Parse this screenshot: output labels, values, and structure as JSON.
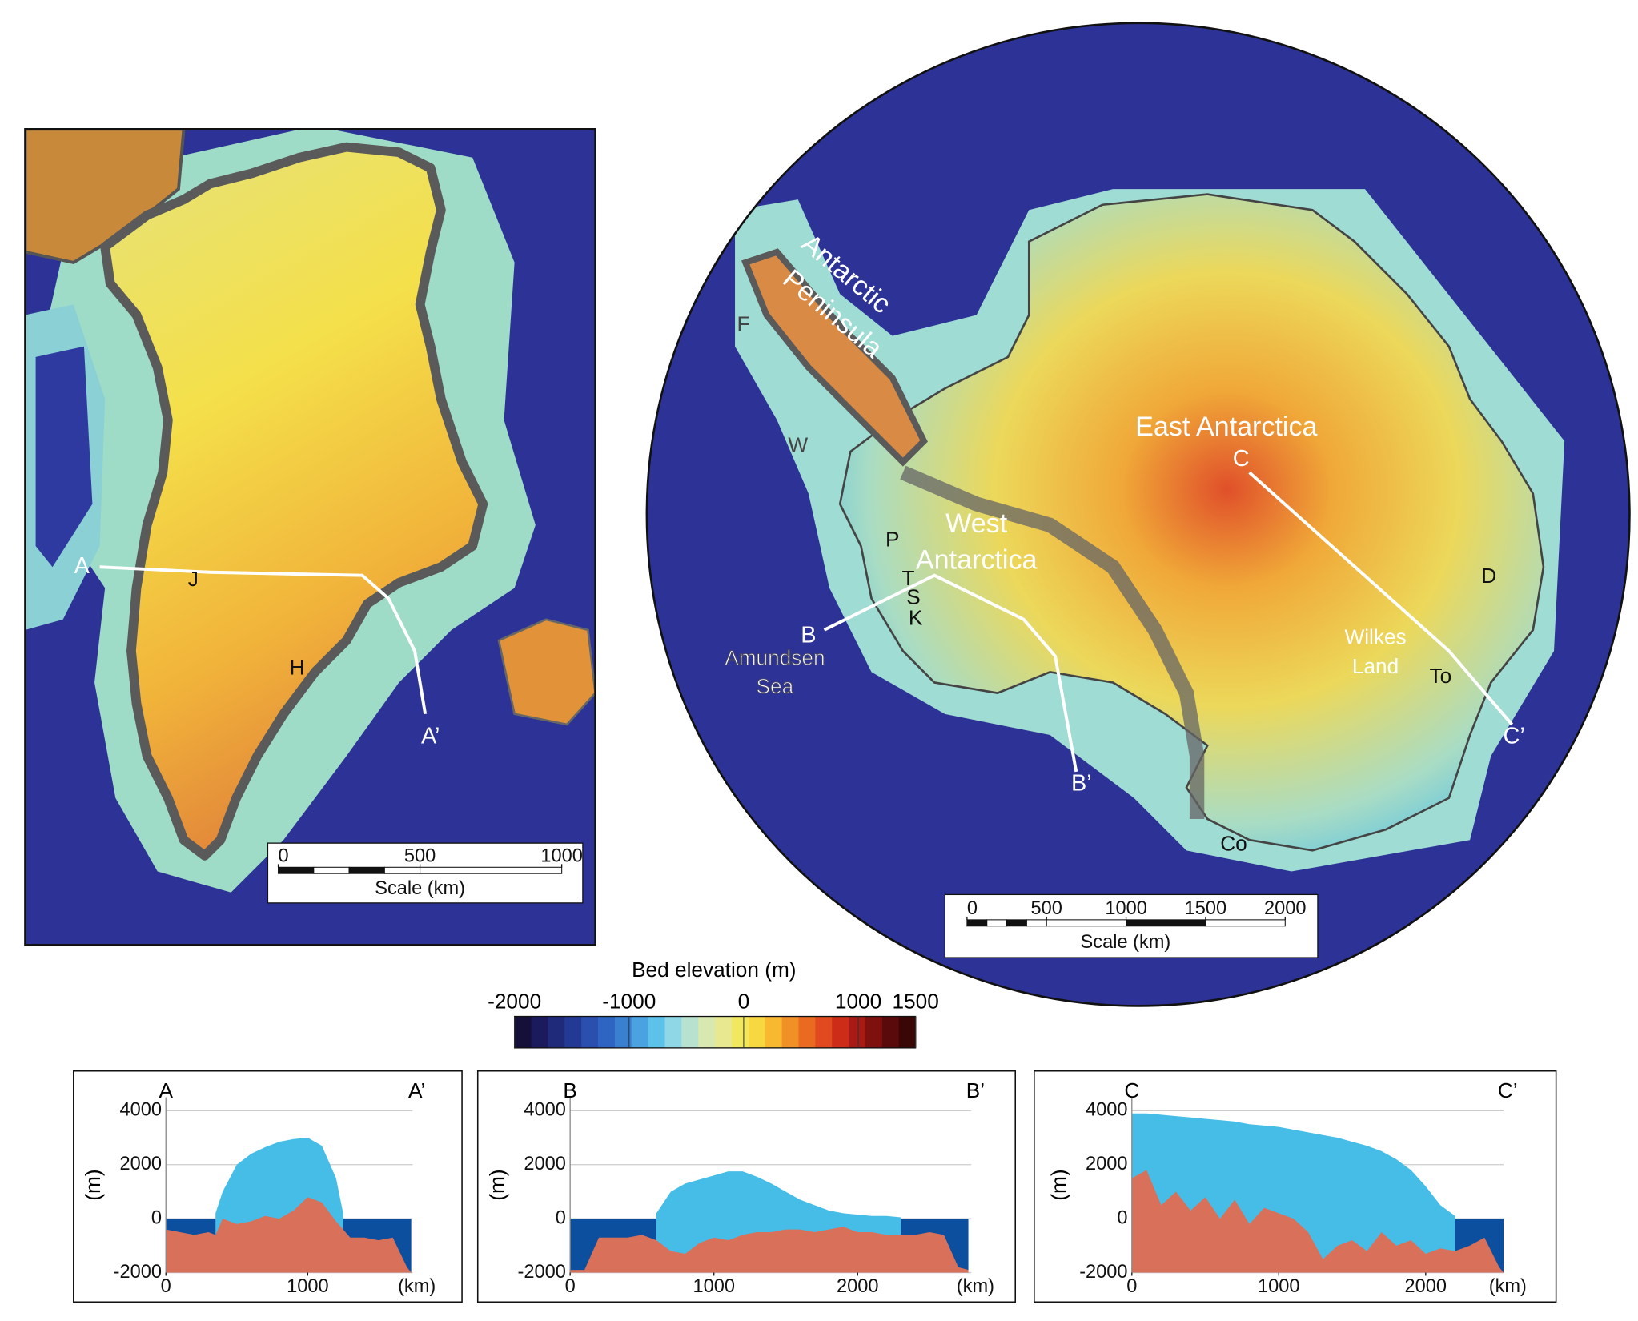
{
  "greenland_map": {
    "labels": [
      "A",
      "A’",
      "J",
      "H"
    ],
    "scale_bar": {
      "ticks": [
        0,
        500,
        1000
      ],
      "label": "Scale (km)"
    }
  },
  "antarctica_map": {
    "region_labels": [
      "Antarctic",
      "Peninsula",
      "East Antarctica",
      "West",
      "Antarctica",
      "Wilkes",
      "Land",
      "Amundsen",
      "Sea"
    ],
    "point_labels": [
      "C",
      "C’",
      "B",
      "B’",
      "P",
      "T",
      "S",
      "K",
      "W",
      "F",
      "D",
      "To",
      "Co"
    ],
    "scale_bar": {
      "ticks": [
        0,
        500,
        1000,
        1500,
        2000
      ],
      "label": "Scale (km)"
    }
  },
  "colorbar": {
    "title": "Bed elevation (m)",
    "lim": [
      -2000,
      1500
    ],
    "ticks": [
      -2000,
      -1000,
      0,
      1000,
      1500
    ],
    "colors": [
      "#14103a",
      "#1a1a5c",
      "#202a7a",
      "#233a94",
      "#2a4fae",
      "#2e65c2",
      "#3a80d0",
      "#4aa3e0",
      "#5cc2ea",
      "#8fd6e6",
      "#b8e2d0",
      "#d8e8b0",
      "#e8e890",
      "#f2e860",
      "#f8d840",
      "#f8b830",
      "#f29028",
      "#ea6a22",
      "#e04a1e",
      "#cc2c18",
      "#a81a14",
      "#7e100e",
      "#5a0a0a",
      "#3a0606"
    ]
  },
  "chart_data": [
    {
      "type": "area",
      "endpoints": [
        "A",
        "A’"
      ],
      "y_label": "(m)",
      "x_label": "(km)",
      "x": [
        0,
        100,
        200,
        300,
        350,
        400,
        500,
        600,
        700,
        800,
        900,
        1000,
        1100,
        1200,
        1250,
        1300,
        1400,
        1500,
        1600,
        1700,
        1730
      ],
      "xlim": [
        0,
        1740
      ],
      "ylim": [
        -2000,
        4500
      ],
      "xticks": [
        0,
        1000
      ],
      "yticks": [
        -2000,
        0,
        2000,
        4000
      ],
      "grid": true,
      "water_color": "#0b4f9e",
      "series": [
        {
          "color": "#45bde6",
          "values": [
            null,
            null,
            null,
            null,
            200,
            1000,
            2000,
            2400,
            2650,
            2850,
            2950,
            3000,
            2700,
            1500,
            200,
            null,
            null,
            null,
            null,
            null,
            null
          ]
        },
        {
          "color": "#d9705a",
          "values": [
            -400,
            -500,
            -600,
            -500,
            -600,
            0,
            -200,
            -100,
            100,
            0,
            300,
            800,
            600,
            -100,
            -400,
            -700,
            -700,
            -800,
            -700,
            -1800,
            -2000
          ]
        }
      ]
    },
    {
      "type": "area",
      "endpoints": [
        "B",
        "B’"
      ],
      "y_label": "(m)",
      "x_label": "(km)",
      "x": [
        0,
        100,
        200,
        300,
        400,
        500,
        600,
        700,
        800,
        900,
        1000,
        1100,
        1200,
        1300,
        1400,
        1500,
        1600,
        1700,
        1800,
        1900,
        2000,
        2100,
        2200,
        2300,
        2400,
        2500,
        2600,
        2700,
        2770
      ],
      "xlim": [
        0,
        2790
      ],
      "ylim": [
        -2000,
        4500
      ],
      "xticks": [
        0,
        1000,
        2000
      ],
      "yticks": [
        -2000,
        0,
        2000,
        4000
      ],
      "grid": true,
      "water_color": "#0b4f9e",
      "series": [
        {
          "color": "#45bde6",
          "values": [
            null,
            null,
            null,
            null,
            null,
            null,
            200,
            1000,
            1300,
            1450,
            1600,
            1750,
            1750,
            1550,
            1300,
            1000,
            700,
            500,
            300,
            200,
            150,
            100,
            100,
            50,
            null,
            null,
            null,
            null,
            null
          ]
        },
        {
          "color": "#d9705a",
          "values": [
            -1900,
            -1900,
            -700,
            -700,
            -700,
            -600,
            -800,
            -1200,
            -1300,
            -900,
            -700,
            -800,
            -600,
            -500,
            -500,
            -400,
            -400,
            -500,
            -400,
            -300,
            -500,
            -500,
            -600,
            -600,
            -600,
            -500,
            -600,
            -1800,
            -1900
          ]
        }
      ]
    },
    {
      "type": "area",
      "endpoints": [
        "C",
        "C’"
      ],
      "y_label": "(m)",
      "x_label": "(km)",
      "x": [
        0,
        100,
        200,
        300,
        400,
        500,
        600,
        700,
        800,
        900,
        1000,
        1100,
        1200,
        1300,
        1400,
        1500,
        1600,
        1700,
        1800,
        1900,
        2000,
        2100,
        2200,
        2300,
        2400,
        2500,
        2530
      ],
      "xlim": [
        0,
        2530
      ],
      "ylim": [
        -2000,
        4500
      ],
      "xticks": [
        0,
        1000,
        2000
      ],
      "yticks": [
        -2000,
        0,
        2000,
        4000
      ],
      "grid": true,
      "water_color": "#0b4f9e",
      "series": [
        {
          "color": "#45bde6",
          "values": [
            3900,
            3900,
            3850,
            3800,
            3750,
            3700,
            3650,
            3600,
            3500,
            3450,
            3400,
            3300,
            3200,
            3100,
            3000,
            2850,
            2700,
            2500,
            2200,
            1800,
            1200,
            500,
            100,
            null,
            null,
            null,
            null
          ]
        },
        {
          "color": "#d9705a",
          "values": [
            1500,
            1800,
            500,
            1000,
            300,
            800,
            0,
            700,
            -200,
            400,
            200,
            0,
            -500,
            -1500,
            -1000,
            -800,
            -1200,
            -500,
            -1000,
            -800,
            -1300,
            -1100,
            -1200,
            -1000,
            -700,
            -1800,
            -2000
          ]
        }
      ]
    }
  ]
}
